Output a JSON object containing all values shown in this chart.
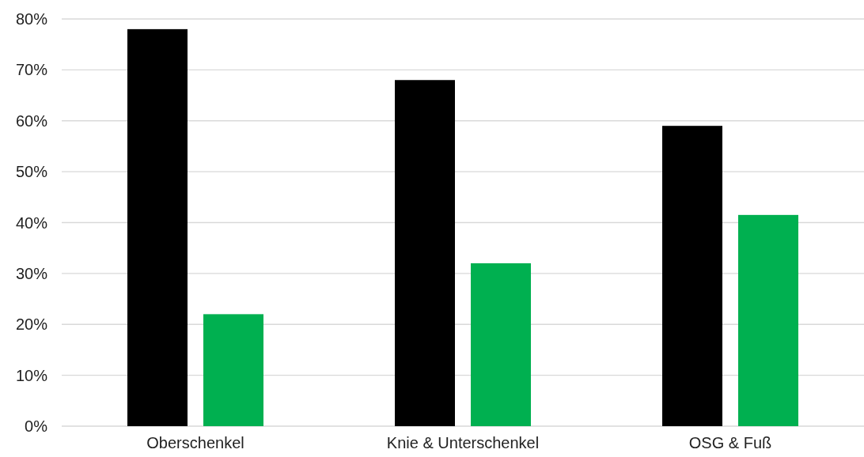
{
  "chart_data": {
    "type": "bar",
    "categories": [
      "Oberschenkel",
      "Knie & Unterschenkel",
      "OSG & Fuß"
    ],
    "series": [
      {
        "color": "#000000",
        "values": [
          78,
          68,
          59
        ]
      },
      {
        "color": "#00b050",
        "values": [
          22,
          32,
          41.5
        ]
      }
    ],
    "ylim": [
      0,
      80
    ],
    "yticks": [
      {
        "value": 0,
        "label": "0%"
      },
      {
        "value": 10,
        "label": "10%"
      },
      {
        "value": 20,
        "label": "20%"
      },
      {
        "value": 30,
        "label": "30%"
      },
      {
        "value": 40,
        "label": "40%"
      },
      {
        "value": 50,
        "label": "50%"
      },
      {
        "value": 60,
        "label": "60%"
      },
      {
        "value": 70,
        "label": "70%"
      },
      {
        "value": 80,
        "label": "80%"
      }
    ],
    "grid": "y"
  }
}
